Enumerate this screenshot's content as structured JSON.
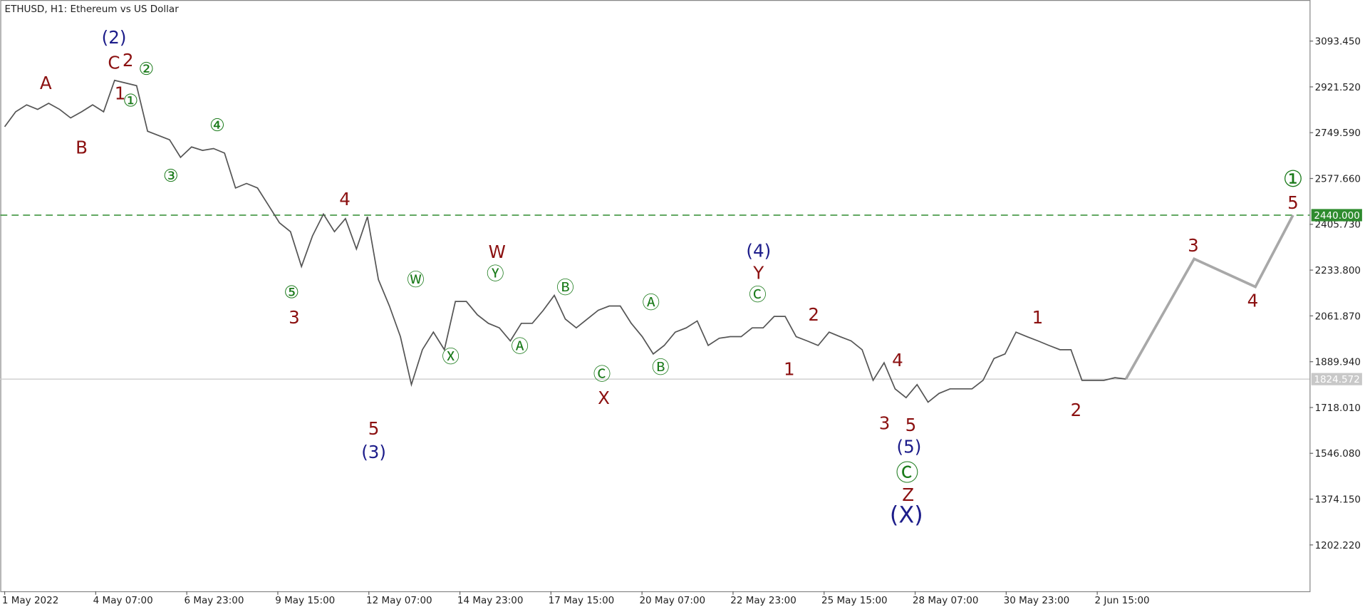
{
  "chart_data": {
    "type": "line",
    "title": "ETHUSD, H1:  Ethereum vs US Dollar",
    "xticks": [
      "1 May 2022",
      "4 May 07:00",
      "6 May 23:00",
      "9 May 15:00",
      "12 May 07:00",
      "14 May 23:00",
      "17 May 15:00",
      "20 May 07:00",
      "22 May 23:00",
      "25 May 15:00",
      "28 May 07:00",
      "30 May 23:00",
      "2 Jun 15:00"
    ],
    "ylim": [
      1028.3,
      3247.6
    ],
    "yticks": [
      {
        "value": 1202.22,
        "label": "1202.220"
      },
      {
        "value": 1374.15,
        "label": "1374.150"
      },
      {
        "value": 1546.08,
        "label": "1546.080"
      },
      {
        "value": 1718.01,
        "label": "1718.010"
      },
      {
        "value": 1889.94,
        "label": "1889.940"
      },
      {
        "value": 2061.87,
        "label": "2061.870"
      },
      {
        "value": 2233.8,
        "label": "2233.800"
      },
      {
        "value": 2405.73,
        "label": "2405.730"
      },
      {
        "value": 2577.66,
        "label": "2577.660"
      },
      {
        "value": 2749.59,
        "label": "2749.590"
      },
      {
        "value": 2921.52,
        "label": "2921.520"
      },
      {
        "value": 3093.45,
        "label": "3093.450"
      }
    ],
    "grid": false,
    "series": [
      {
        "name": "ETHUSD",
        "color": "#555555",
        "values": [
          2772,
          2828,
          2854,
          2837,
          2860,
          2837,
          2805,
          2828,
          2854,
          2828,
          2946,
          2936,
          2926,
          2755,
          2739,
          2723,
          2657,
          2696,
          2683,
          2690,
          2673,
          2542,
          2559,
          2542,
          2477,
          2411,
          2378,
          2247,
          2362,
          2444,
          2378,
          2427,
          2313,
          2434,
          2198,
          2099,
          1984,
          1804,
          1935,
          2001,
          1935,
          2116,
          2116,
          2066,
          2034,
          2017,
          1968,
          2034,
          2034,
          2083,
          2139,
          2050,
          2017,
          2050,
          2083,
          2099,
          2099,
          2034,
          1984,
          1919,
          1951,
          2001,
          2017,
          2043,
          1951,
          1978,
          1984,
          1984,
          2017,
          2017,
          2060,
          2060,
          1984,
          1968,
          1951,
          2001,
          1984,
          1968,
          1935,
          1820,
          1886,
          1788,
          1755,
          1804,
          1738,
          1771,
          1788,
          1788,
          1788,
          1820,
          1902,
          1919,
          2001,
          1984,
          1968,
          1951,
          1935,
          1935,
          1820,
          1820,
          1820,
          1830,
          1825
        ]
      },
      {
        "name": "Projection",
        "color": "#a8a8a8",
        "values": [
          1825,
          2276,
          2171,
          2440
        ]
      }
    ],
    "levels": [
      {
        "value": 2440,
        "label": "2440.000",
        "color": "#2e8b2e"
      },
      {
        "value": 1824.572,
        "label": "1824.572",
        "color": "#c8c8c8"
      }
    ],
    "annotations": [
      {
        "text": "(2)",
        "color": "#1c1c8a"
      },
      {
        "text": "C",
        "color": "#8b1010"
      },
      {
        "text": "2",
        "color": "#8b1010"
      },
      {
        "text": "②",
        "color": "#1a7a1a"
      },
      {
        "text": "1",
        "color": "#8b1010"
      },
      {
        "text": "①",
        "color": "#1a7a1a"
      },
      {
        "text": "A",
        "color": "#8b1010"
      },
      {
        "text": "B",
        "color": "#8b1010"
      },
      {
        "text": "④",
        "color": "#1a7a1a"
      },
      {
        "text": "③",
        "color": "#1a7a1a"
      },
      {
        "text": "4",
        "color": "#8b1010"
      },
      {
        "text": "⑤",
        "color": "#1a7a1a"
      },
      {
        "text": "3",
        "color": "#8b1010"
      },
      {
        "text": "5",
        "color": "#8b1010"
      },
      {
        "text": "(3)",
        "color": "#1c1c8a"
      },
      {
        "text": "Ⓦ",
        "color": "#1a7a1a"
      },
      {
        "text": "Ⓧ",
        "color": "#1a7a1a"
      },
      {
        "text": "W",
        "color": "#8b1010"
      },
      {
        "text": "Ⓨ",
        "color": "#1a7a1a"
      },
      {
        "text": "Ⓐ",
        "color": "#1a7a1a"
      },
      {
        "text": "Ⓑ",
        "color": "#1a7a1a"
      },
      {
        "text": "Ⓒ",
        "color": "#1a7a1a"
      },
      {
        "text": "X",
        "color": "#8b1010"
      },
      {
        "text": "Ⓐ",
        "color": "#1a7a1a"
      },
      {
        "text": "Ⓑ",
        "color": "#1a7a1a"
      },
      {
        "text": "(4)",
        "color": "#1c1c8a"
      },
      {
        "text": "Y",
        "color": "#8b1010"
      },
      {
        "text": "Ⓒ",
        "color": "#1a7a1a"
      },
      {
        "text": "2",
        "color": "#8b1010"
      },
      {
        "text": "1",
        "color": "#8b1010"
      },
      {
        "text": "4",
        "color": "#8b1010"
      },
      {
        "text": "3",
        "color": "#8b1010"
      },
      {
        "text": "5",
        "color": "#8b1010"
      },
      {
        "text": "(5)",
        "color": "#1c1c8a"
      },
      {
        "text": "Ⓒ",
        "color": "#1a7a1a"
      },
      {
        "text": "Z",
        "color": "#8b1010"
      },
      {
        "text": "(X)",
        "color": "#1c1c8a"
      },
      {
        "text": "1",
        "color": "#8b1010"
      },
      {
        "text": "2",
        "color": "#8b1010"
      },
      {
        "text": "3",
        "color": "#8b1010"
      },
      {
        "text": "4",
        "color": "#8b1010"
      },
      {
        "text": "5",
        "color": "#8b1010"
      },
      {
        "text": "①",
        "color": "#1a7a1a"
      }
    ]
  }
}
